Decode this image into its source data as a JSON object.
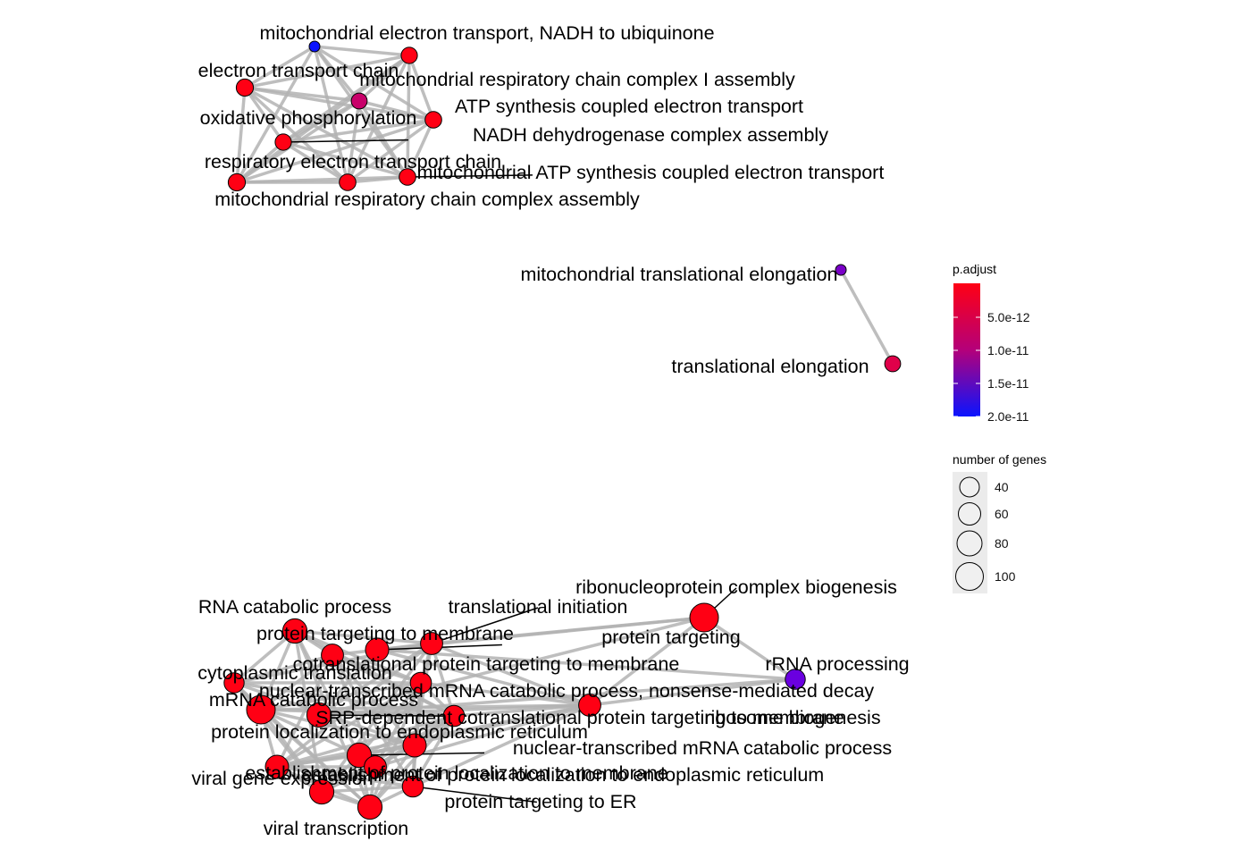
{
  "nodes": [
    {
      "id": "n1",
      "label": "mitochondrial electron transport, NADH to ubiquinone",
      "color": "#0a14ff",
      "size": 16
    },
    {
      "id": "n2",
      "label": "electron transport chain",
      "color": "#ff0014",
      "size": 46
    },
    {
      "id": "n3",
      "label": "mitochondrial respiratory chain complex I assembly",
      "color": "#c8006a",
      "size": 40
    },
    {
      "id": "n4",
      "label": "ATP synthesis coupled electron transport",
      "color": "#ff0014",
      "size": 44
    },
    {
      "id": "n5",
      "label": "oxidative phosphorylation",
      "color": "#ff0014",
      "size": 42
    },
    {
      "id": "n6",
      "label": "NADH dehydrogenase complex assembly",
      "color": "#ff0014",
      "size": 42
    },
    {
      "id": "n7",
      "label": "respiratory electron transport chain",
      "color": "#ff0014",
      "size": 46
    },
    {
      "id": "n8",
      "label": "mitochondrial ATP synthesis coupled electron transport",
      "color": "#ff0014",
      "size": 44
    },
    {
      "id": "n9",
      "label": "mitochondrial respiratory chain complex assembly",
      "color": "#ff0014",
      "size": 44
    },
    {
      "id": "n10",
      "label": "mitochondrial translational elongation",
      "color": "#7a00c8",
      "size": 16
    },
    {
      "id": "n11",
      "label": "translational elongation",
      "color": "#e0004a",
      "size": 40
    },
    {
      "id": "n12",
      "label": "RNA catabolic process",
      "color": "#ff0014",
      "size": 80
    },
    {
      "id": "n13",
      "label": "translational initiation",
      "color": "#ff0014",
      "size": 70
    },
    {
      "id": "n14",
      "label": "ribonucleoprotein complex biogenesis",
      "color": "#ff0014",
      "size": 100
    },
    {
      "id": "n15",
      "label": "protein targeting to membrane",
      "color": "#ff0014",
      "size": 70
    },
    {
      "id": "n16",
      "label": "protein targeting",
      "color": "#ff0014",
      "size": 75
    },
    {
      "id": "n17",
      "label": "cotranslational protein targeting to membrane",
      "color": "#ff0014",
      "size": 65
    },
    {
      "id": "n18",
      "label": "rRNA processing",
      "color": "#6a00e0",
      "size": 60
    },
    {
      "id": "n19",
      "label": "cytoplasmic translation",
      "color": "#ff0014",
      "size": 60
    },
    {
      "id": "n20",
      "label": "nuclear-transcribed mRNA catabolic process, nonsense-mediated decay",
      "color": "#ff0014",
      "size": 70
    },
    {
      "id": "n21",
      "label": "mRNA catabolic process",
      "color": "#ff0014",
      "size": 100
    },
    {
      "id": "n22",
      "label": "SRP-dependent cotranslational protein targeting to membrane",
      "color": "#ff0014",
      "size": 65
    },
    {
      "id": "n23",
      "label": "ribosome biogenesis",
      "color": "#ff0014",
      "size": 80
    },
    {
      "id": "n24",
      "label": "protein localization to endoplasmic reticulum",
      "color": "#ff0014",
      "size": 75
    },
    {
      "id": "n25",
      "label": "nuclear-transcribed mRNA catabolic process",
      "color": "#ff0014",
      "size": 80
    },
    {
      "id": "n26",
      "label": "establishment of protein localization to membrane",
      "color": "#ff0014",
      "size": 75
    },
    {
      "id": "n27",
      "label": "establishment of protein localization to endoplasmic reticulum",
      "color": "#ff0014",
      "size": 70
    },
    {
      "id": "n28",
      "label": "viral gene expression",
      "color": "#ff0014",
      "size": 80
    },
    {
      "id": "n29",
      "label": "protein targeting to ER",
      "color": "#ff0014",
      "size": 65
    },
    {
      "id": "n30",
      "label": "viral transcription",
      "color": "#ff0014",
      "size": 80
    }
  ],
  "edges": [
    [
      "n1",
      "n2"
    ],
    [
      "n1",
      "n3"
    ],
    [
      "n1",
      "n4"
    ],
    [
      "n1",
      "n5"
    ],
    [
      "n1",
      "n8"
    ],
    [
      "n1",
      "n9"
    ],
    [
      "n1",
      "n7"
    ],
    [
      "n2",
      "n3"
    ],
    [
      "n2",
      "n4"
    ],
    [
      "n2",
      "n5"
    ],
    [
      "n2",
      "n6"
    ],
    [
      "n2",
      "n7"
    ],
    [
      "n2",
      "n8"
    ],
    [
      "n2",
      "n9"
    ],
    [
      "n3",
      "n4"
    ],
    [
      "n3",
      "n5"
    ],
    [
      "n3",
      "n6"
    ],
    [
      "n3",
      "n7"
    ],
    [
      "n3",
      "n8"
    ],
    [
      "n3",
      "n9"
    ],
    [
      "n4",
      "n5"
    ],
    [
      "n4",
      "n6"
    ],
    [
      "n4",
      "n7"
    ],
    [
      "n4",
      "n8"
    ],
    [
      "n4",
      "n9"
    ],
    [
      "n5",
      "n6"
    ],
    [
      "n5",
      "n7"
    ],
    [
      "n5",
      "n8"
    ],
    [
      "n5",
      "n9"
    ],
    [
      "n6",
      "n7"
    ],
    [
      "n6",
      "n8"
    ],
    [
      "n6",
      "n9"
    ],
    [
      "n7",
      "n8"
    ],
    [
      "n7",
      "n9"
    ],
    [
      "n8",
      "n9"
    ],
    [
      "n10",
      "n11"
    ],
    [
      "n14",
      "n16"
    ],
    [
      "n14",
      "n18"
    ],
    [
      "n14",
      "n23"
    ],
    [
      "n14",
      "n13"
    ],
    [
      "n14",
      "n20"
    ],
    [
      "n16",
      "n18"
    ],
    [
      "n16",
      "n23"
    ],
    [
      "n18",
      "n23"
    ],
    [
      "n18",
      "n20"
    ],
    [
      "n12",
      "n13"
    ],
    [
      "n12",
      "n15"
    ],
    [
      "n12",
      "n17"
    ],
    [
      "n12",
      "n19"
    ],
    [
      "n12",
      "n21"
    ],
    [
      "n12",
      "n22"
    ],
    [
      "n12",
      "n25"
    ],
    [
      "n12",
      "n28"
    ],
    [
      "n12",
      "n30"
    ],
    [
      "n13",
      "n15"
    ],
    [
      "n13",
      "n17"
    ],
    [
      "n13",
      "n19"
    ],
    [
      "n13",
      "n20"
    ],
    [
      "n13",
      "n22"
    ],
    [
      "n13",
      "n23"
    ],
    [
      "n13",
      "n24"
    ],
    [
      "n13",
      "n26"
    ],
    [
      "n13",
      "n28"
    ],
    [
      "n15",
      "n17"
    ],
    [
      "n15",
      "n19"
    ],
    [
      "n15",
      "n21"
    ],
    [
      "n15",
      "n22"
    ],
    [
      "n15",
      "n24"
    ],
    [
      "n15",
      "n26"
    ],
    [
      "n15",
      "n27"
    ],
    [
      "n15",
      "n29"
    ],
    [
      "n17",
      "n19"
    ],
    [
      "n17",
      "n20"
    ],
    [
      "n17",
      "n21"
    ],
    [
      "n17",
      "n22"
    ],
    [
      "n17",
      "n24"
    ],
    [
      "n17",
      "n25"
    ],
    [
      "n17",
      "n26"
    ],
    [
      "n17",
      "n27"
    ],
    [
      "n17",
      "n29"
    ],
    [
      "n17",
      "n30"
    ],
    [
      "n19",
      "n21"
    ],
    [
      "n19",
      "n22"
    ],
    [
      "n19",
      "n24"
    ],
    [
      "n19",
      "n28"
    ],
    [
      "n19",
      "n30"
    ],
    [
      "n20",
      "n21"
    ],
    [
      "n20",
      "n22"
    ],
    [
      "n20",
      "n23"
    ],
    [
      "n20",
      "n25"
    ],
    [
      "n20",
      "n26"
    ],
    [
      "n20",
      "n27"
    ],
    [
      "n20",
      "n29"
    ],
    [
      "n20",
      "n16"
    ],
    [
      "n21",
      "n22"
    ],
    [
      "n21",
      "n24"
    ],
    [
      "n21",
      "n25"
    ],
    [
      "n21",
      "n26"
    ],
    [
      "n21",
      "n28"
    ],
    [
      "n21",
      "n30"
    ],
    [
      "n22",
      "n24"
    ],
    [
      "n22",
      "n25"
    ],
    [
      "n22",
      "n26"
    ],
    [
      "n22",
      "n27"
    ],
    [
      "n22",
      "n28"
    ],
    [
      "n22",
      "n29"
    ],
    [
      "n22",
      "n30"
    ],
    [
      "n24",
      "n25"
    ],
    [
      "n24",
      "n26"
    ],
    [
      "n24",
      "n27"
    ],
    [
      "n24",
      "n28"
    ],
    [
      "n24",
      "n29"
    ],
    [
      "n24",
      "n30"
    ],
    [
      "n25",
      "n26"
    ],
    [
      "n25",
      "n27"
    ],
    [
      "n25",
      "n28"
    ],
    [
      "n25",
      "n29"
    ],
    [
      "n25",
      "n30"
    ],
    [
      "n26",
      "n27"
    ],
    [
      "n26",
      "n28"
    ],
    [
      "n26",
      "n29"
    ],
    [
      "n26",
      "n30"
    ],
    [
      "n27",
      "n28"
    ],
    [
      "n27",
      "n29"
    ],
    [
      "n27",
      "n30"
    ],
    [
      "n28",
      "n29"
    ],
    [
      "n28",
      "n30"
    ],
    [
      "n29",
      "n30"
    ]
  ],
  "legend": {
    "color_title": "p.adjust",
    "color_ticks": [
      "5.0e-12",
      "1.0e-11",
      "1.5e-11",
      "2.0e-11"
    ],
    "gradient_top": "#ff0014",
    "gradient_bottom": "#0a14ff",
    "size_title": "number of genes",
    "size_ticks": [
      40,
      60,
      80,
      100
    ]
  }
}
